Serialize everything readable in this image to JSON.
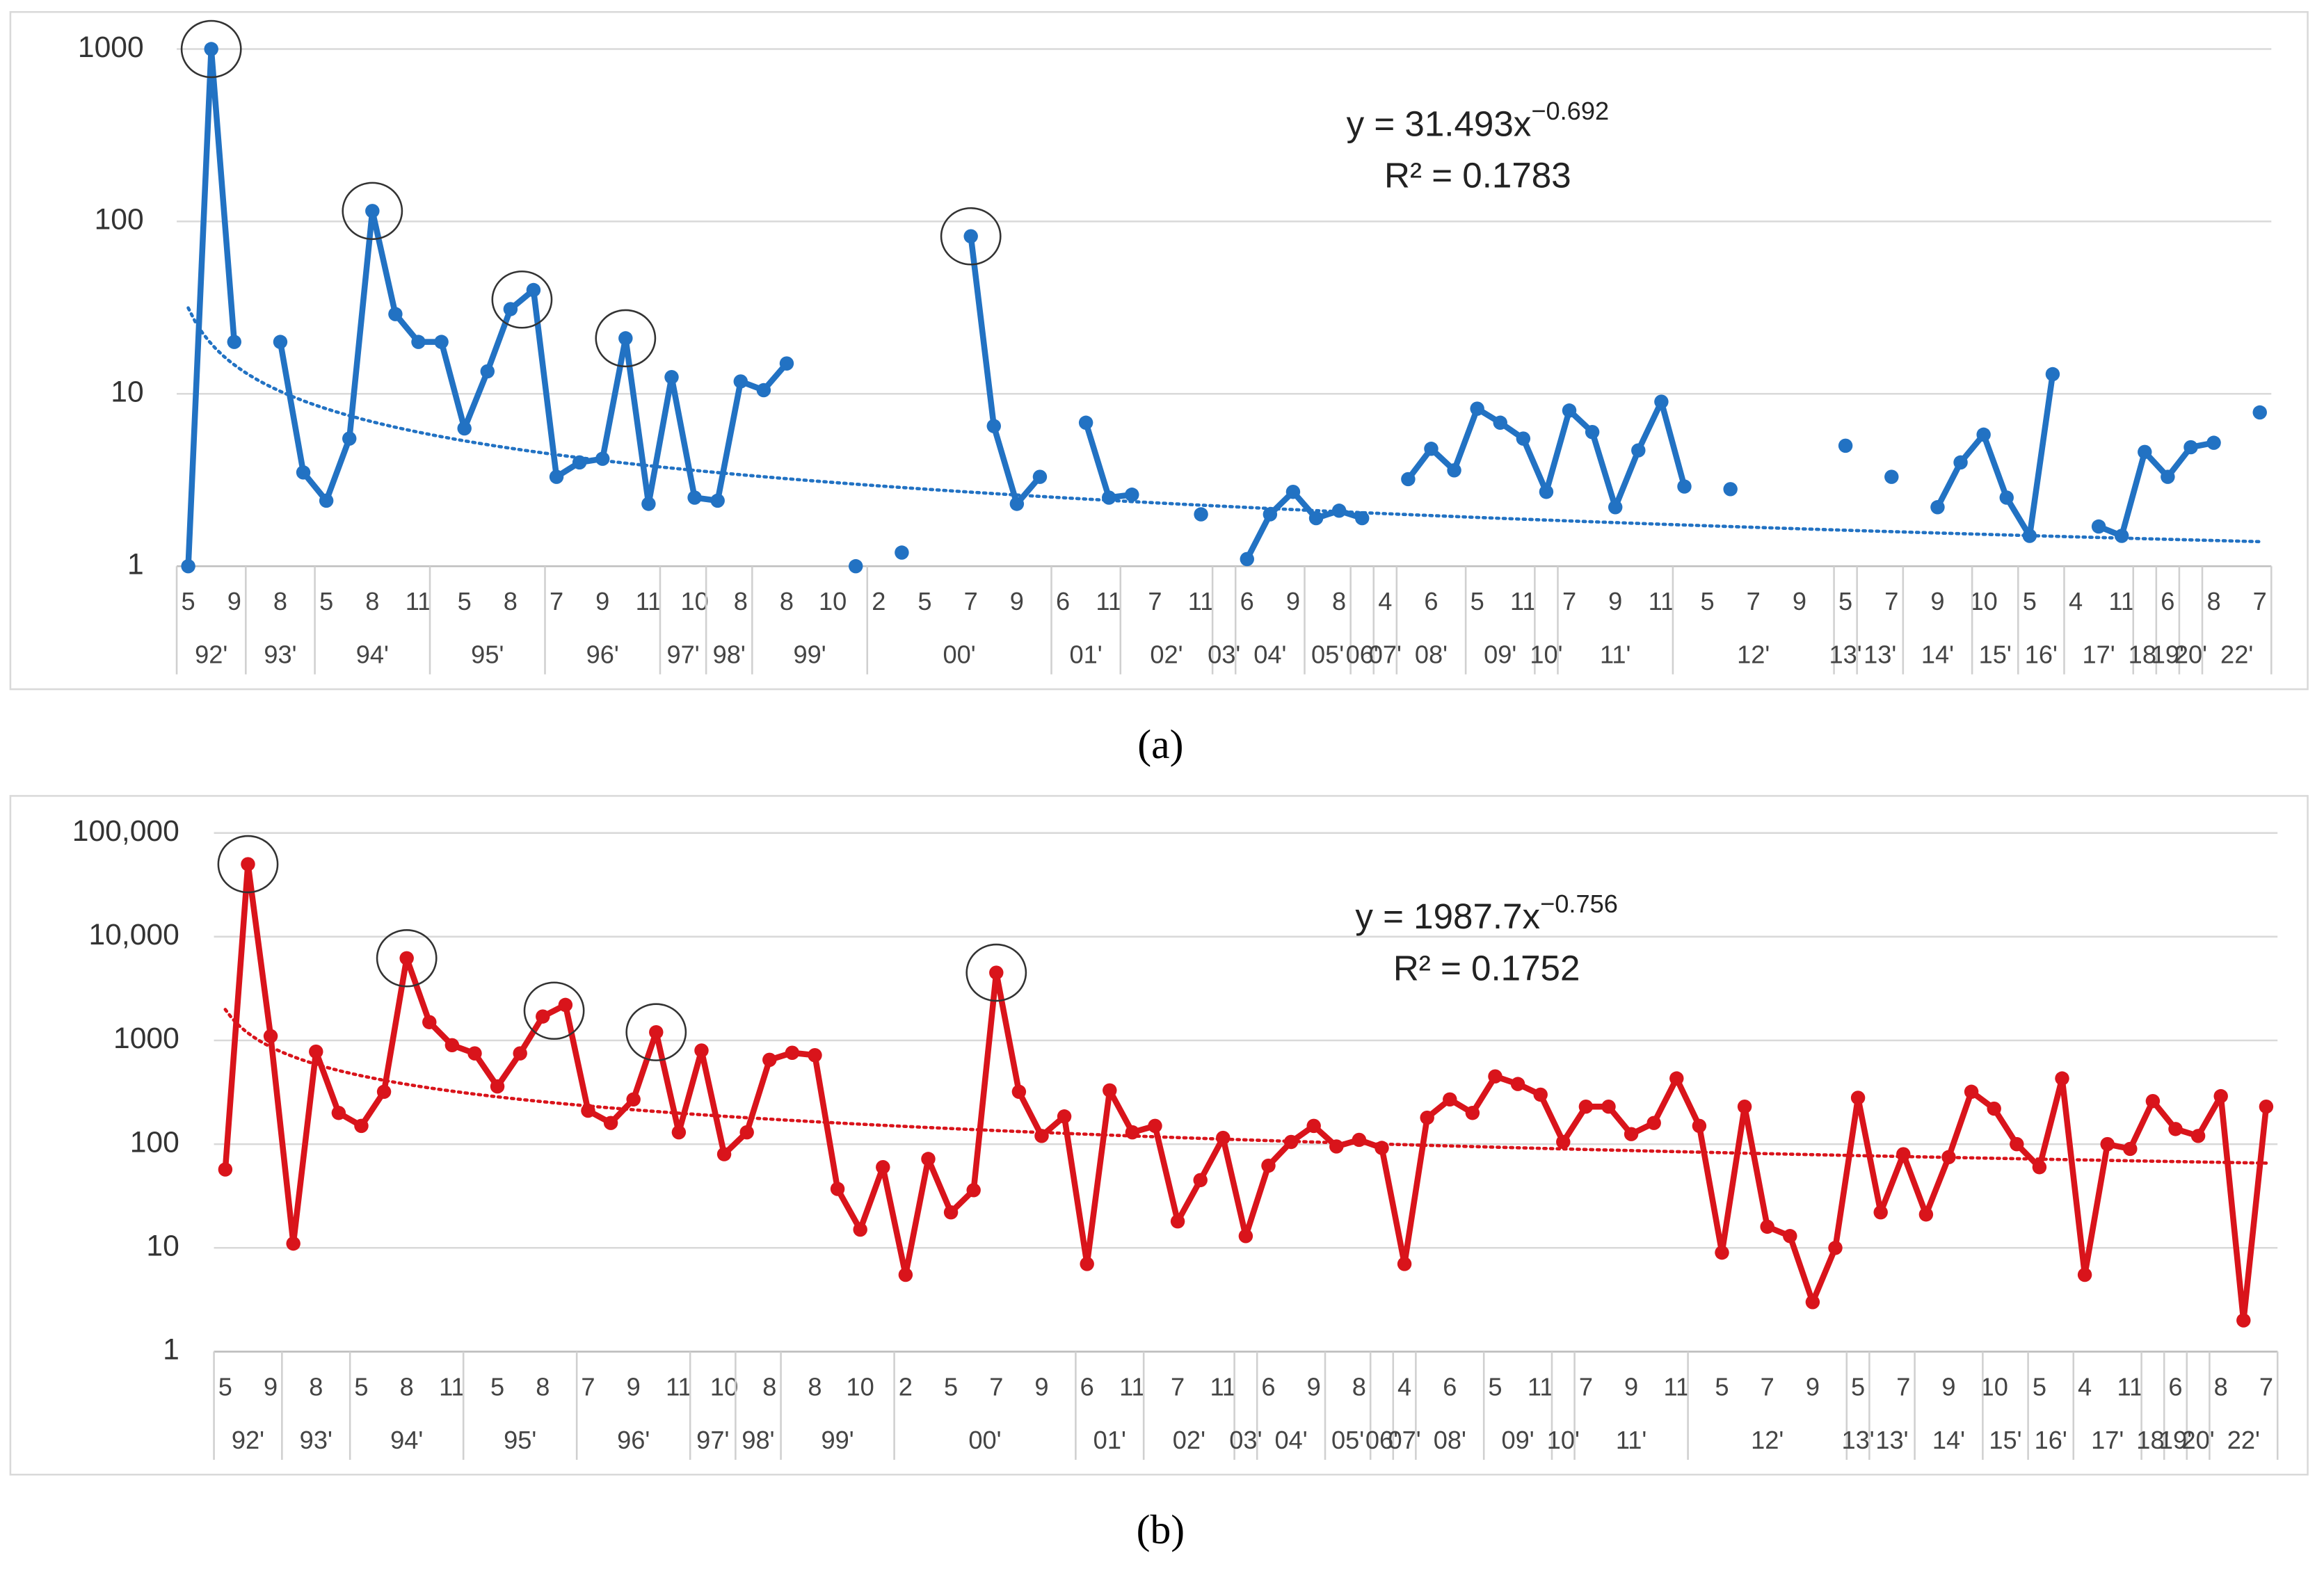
{
  "chart_data": [
    {
      "type": "line",
      "panel_label": "(a)",
      "log_scale": true,
      "grid": true,
      "color": "#2272c3",
      "ylim": [
        1,
        1000
      ],
      "yticks": [
        1,
        10,
        100,
        1000
      ],
      "categories": [
        "5",
        null,
        "9",
        null,
        "8",
        null,
        "5",
        null,
        "8",
        null,
        "11",
        null,
        "5",
        null,
        "8",
        null,
        "7",
        null,
        "9",
        null,
        "11",
        null,
        "10",
        null,
        "8",
        null,
        "8",
        null,
        "10",
        null,
        "2",
        null,
        "5",
        null,
        "7",
        null,
        "9",
        null,
        "6",
        null,
        "11",
        null,
        "7",
        null,
        "11",
        null,
        "6",
        null,
        "9",
        null,
        "8",
        null,
        "4",
        null,
        "6",
        null,
        "5",
        null,
        "11",
        null,
        "7",
        null,
        "9",
        null,
        "11",
        null,
        "5",
        null,
        "7",
        null,
        "9",
        null,
        "5",
        null,
        "7",
        null,
        "9",
        null,
        "10",
        null,
        "5",
        null,
        "4",
        null,
        "11",
        null,
        "6",
        null,
        "8",
        null,
        "7"
      ],
      "groups": [
        {
          "label": "92'",
          "size": 3
        },
        {
          "label": "93'",
          "size": 3
        },
        {
          "label": "94'",
          "size": 5
        },
        {
          "label": "95'",
          "size": 5
        },
        {
          "label": "96'",
          "size": 5
        },
        {
          "label": "97'",
          "size": 2
        },
        {
          "label": "98'",
          "size": 2
        },
        {
          "label": "99'",
          "size": 5
        },
        {
          "label": "00'",
          "size": 8
        },
        {
          "label": "01'",
          "size": 3
        },
        {
          "label": "02'",
          "size": 4
        },
        {
          "label": "03'",
          "size": 1
        },
        {
          "label": "04'",
          "size": 3
        },
        {
          "label": "05'",
          "size": 2
        },
        {
          "label": "06'",
          "size": 1
        },
        {
          "label": "07'",
          "size": 1
        },
        {
          "label": "08'",
          "size": 3
        },
        {
          "label": "09'",
          "size": 3
        },
        {
          "label": "10'",
          "size": 1
        },
        {
          "label": "11'",
          "size": 5
        },
        {
          "label": "12'",
          "size": 7
        },
        {
          "label": "13'",
          "size": 1
        },
        {
          "label": "13'",
          "size": 2
        },
        {
          "label": "14'",
          "size": 3
        },
        {
          "label": "15'",
          "size": 2
        },
        {
          "label": "16'",
          "size": 2
        },
        {
          "label": "17'",
          "size": 3
        },
        {
          "label": "18'",
          "size": 1
        },
        {
          "label": "19'",
          "size": 1
        },
        {
          "label": "20'",
          "size": 1
        },
        {
          "label": "22'",
          "size": 3
        }
      ],
      "values": [
        1,
        1000,
        20,
        null,
        20,
        3.5,
        2.4,
        5.5,
        115,
        29,
        20,
        20,
        6.3,
        13.5,
        31,
        40,
        3.3,
        4,
        4.2,
        21,
        2.3,
        12.5,
        2.5,
        2.4,
        11.8,
        10.5,
        15,
        null,
        null,
        1,
        null,
        1.2,
        null,
        null,
        82,
        6.5,
        2.3,
        3.3,
        null,
        6.8,
        2.5,
        2.6,
        null,
        null,
        2,
        null,
        1.1,
        2,
        2.7,
        1.9,
        2.1,
        1.9,
        null,
        3.2,
        4.8,
        3.6,
        8.2,
        6.8,
        5.5,
        2.7,
        8,
        6,
        2.2,
        4.7,
        9,
        2.9,
        null,
        2.8,
        null,
        null,
        null,
        null,
        5,
        null,
        3.3,
        null,
        2.2,
        4,
        5.8,
        2.5,
        1.5,
        13,
        null,
        1.7,
        1.5,
        4.6,
        3.3,
        4.9,
        5.2,
        null,
        7.8
      ],
      "trendline": {
        "type": "power",
        "coefficient": 31.493,
        "exponent": -0.692,
        "equation_label": "y = 31.493x",
        "equation_exponent_label": "−0.692",
        "r2_label": "R² = 0.1783"
      }
    },
    {
      "type": "line",
      "panel_label": "(b)",
      "log_scale": true,
      "grid": true,
      "color": "#d9141b",
      "ylim": [
        1,
        100000
      ],
      "yticks": [
        1,
        10,
        100,
        1000,
        {
          "value": 10000,
          "label": "10,000"
        },
        {
          "value": 100000,
          "label": "100,000"
        }
      ],
      "categories": [
        "5",
        null,
        "9",
        null,
        "8",
        null,
        "5",
        null,
        "8",
        null,
        "11",
        null,
        "5",
        null,
        "8",
        null,
        "7",
        null,
        "9",
        null,
        "11",
        null,
        "10",
        null,
        "8",
        null,
        "8",
        null,
        "10",
        null,
        "2",
        null,
        "5",
        null,
        "7",
        null,
        "9",
        null,
        "6",
        null,
        "11",
        null,
        "7",
        null,
        "11",
        null,
        "6",
        null,
        "9",
        null,
        "8",
        null,
        "4",
        null,
        "6",
        null,
        "5",
        null,
        "11",
        null,
        "7",
        null,
        "9",
        null,
        "11",
        null,
        "5",
        null,
        "7",
        null,
        "9",
        null,
        "5",
        null,
        "7",
        null,
        "9",
        null,
        "10",
        null,
        "5",
        null,
        "4",
        null,
        "11",
        null,
        "6",
        null,
        "8",
        null,
        "7"
      ],
      "groups": [
        {
          "label": "92'",
          "size": 3
        },
        {
          "label": "93'",
          "size": 3
        },
        {
          "label": "94'",
          "size": 5
        },
        {
          "label": "95'",
          "size": 5
        },
        {
          "label": "96'",
          "size": 5
        },
        {
          "label": "97'",
          "size": 2
        },
        {
          "label": "98'",
          "size": 2
        },
        {
          "label": "99'",
          "size": 5
        },
        {
          "label": "00'",
          "size": 8
        },
        {
          "label": "01'",
          "size": 3
        },
        {
          "label": "02'",
          "size": 4
        },
        {
          "label": "03'",
          "size": 1
        },
        {
          "label": "04'",
          "size": 3
        },
        {
          "label": "05'",
          "size": 2
        },
        {
          "label": "06'",
          "size": 1
        },
        {
          "label": "07'",
          "size": 1
        },
        {
          "label": "08'",
          "size": 3
        },
        {
          "label": "09'",
          "size": 3
        },
        {
          "label": "10'",
          "size": 1
        },
        {
          "label": "11'",
          "size": 5
        },
        {
          "label": "12'",
          "size": 7
        },
        {
          "label": "13'",
          "size": 1
        },
        {
          "label": "13'",
          "size": 2
        },
        {
          "label": "14'",
          "size": 3
        },
        {
          "label": "15'",
          "size": 2
        },
        {
          "label": "16'",
          "size": 2
        },
        {
          "label": "17'",
          "size": 3
        },
        {
          "label": "18'",
          "size": 1
        },
        {
          "label": "19'",
          "size": 1
        },
        {
          "label": "20'",
          "size": 1
        },
        {
          "label": "22'",
          "size": 3
        }
      ],
      "values": [
        57,
        50000,
        1100,
        11,
        780,
        200,
        150,
        320,
        6200,
        1500,
        900,
        750,
        360,
        750,
        1700,
        2200,
        210,
        160,
        270,
        1200,
        130,
        800,
        80,
        130,
        650,
        760,
        720,
        37,
        15,
        60,
        5.5,
        72,
        22,
        36,
        4500,
        320,
        120,
        185,
        7,
        330,
        130,
        150,
        18,
        45,
        115,
        13,
        62,
        105,
        150,
        95,
        110,
        92,
        7,
        180,
        270,
        200,
        450,
        380,
        300,
        105,
        230,
        230,
        125,
        160,
        430,
        150,
        9,
        230,
        16,
        13,
        3,
        10,
        280,
        22,
        80,
        21,
        75,
        320,
        220,
        100,
        60,
        430,
        5.5,
        100,
        90,
        260,
        140,
        120,
        290,
        2,
        230
      ],
      "trendline": {
        "type": "power",
        "coefficient": 1987.7,
        "exponent": -0.756,
        "equation_label": "y = 1987.7x",
        "equation_exponent_label": "−0.756",
        "r2_label": "R² = 0.1752"
      }
    }
  ]
}
